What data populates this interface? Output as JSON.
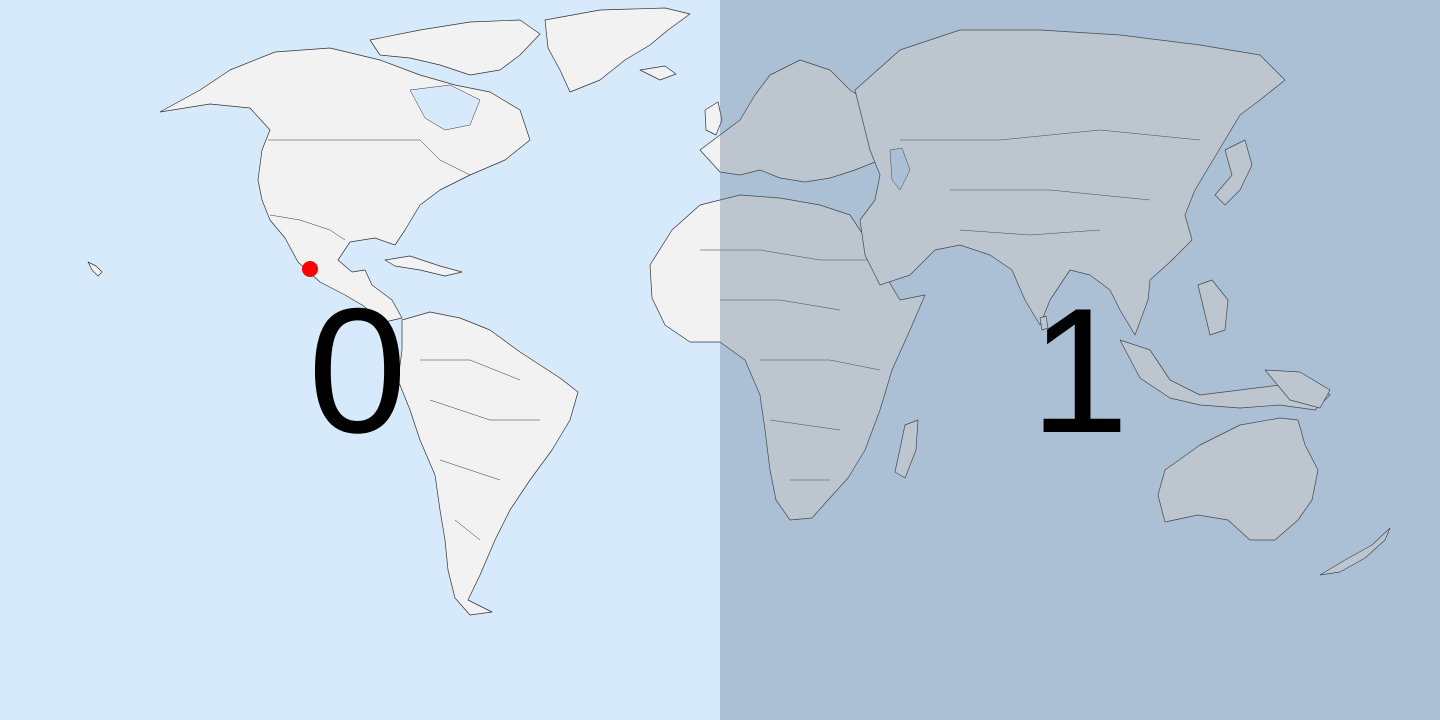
{
  "zones": [
    {
      "label": "0",
      "selected": true
    },
    {
      "label": "1",
      "selected": false
    }
  ],
  "colors": {
    "ocean": "#d7eafb",
    "land": "#f2f2f2",
    "dimmed_overlay": "#5b7490",
    "marker": "#ff0000"
  },
  "marker": {
    "icon": "location-dot-icon"
  }
}
